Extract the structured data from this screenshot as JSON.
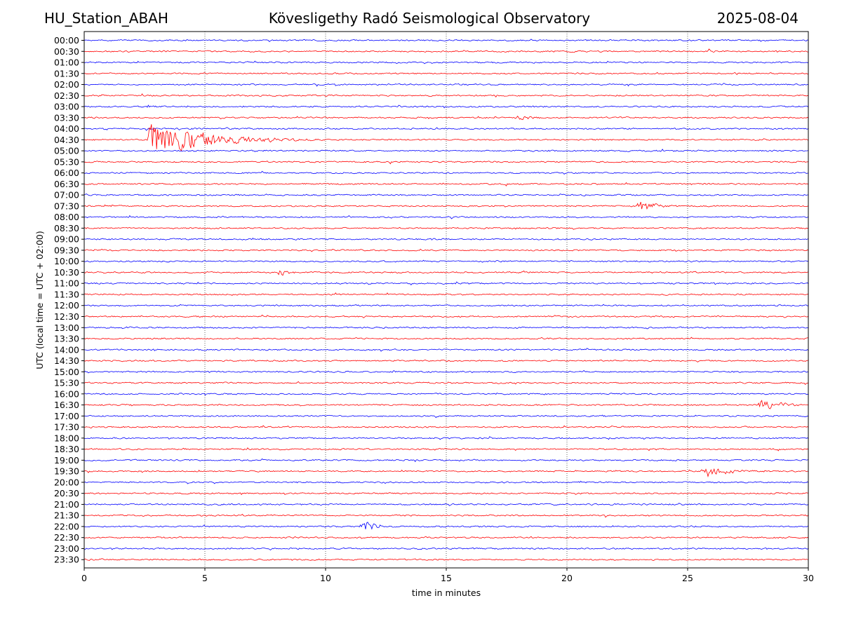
{
  "header": {
    "station": "HU_Station_ABAH",
    "observatory": "Kövesligethy Radó Seismological Observatory",
    "date": "2025-08-04"
  },
  "chart_data": {
    "type": "line",
    "title": "Kövesligethy Radó Seismological Observatory",
    "xlabel": "time in minutes",
    "ylabel": "UTC (local time = UTC + 02:00)",
    "xlim": [
      0,
      30
    ],
    "x_ticks": [
      "0",
      "5",
      "10",
      "15",
      "20",
      "25",
      "30"
    ],
    "grid_x": true,
    "grid_style": "dotted",
    "trace_colors": [
      "#0000ff",
      "#ff0000"
    ],
    "rows": [
      "00:00",
      "00:30",
      "01:00",
      "01:30",
      "02:00",
      "02:30",
      "03:00",
      "03:30",
      "04:00",
      "04:30",
      "05:00",
      "05:30",
      "06:00",
      "06:30",
      "07:00",
      "07:30",
      "08:00",
      "08:30",
      "09:00",
      "09:30",
      "10:00",
      "10:30",
      "11:00",
      "11:30",
      "12:00",
      "12:30",
      "13:00",
      "13:30",
      "14:00",
      "14:30",
      "15:00",
      "15:30",
      "16:00",
      "16:30",
      "17:00",
      "17:30",
      "18:00",
      "18:30",
      "19:00",
      "19:30",
      "20:00",
      "20:30",
      "21:00",
      "21:30",
      "22:00",
      "22:30",
      "23:00",
      "23:30"
    ],
    "events": [
      {
        "row": "00:30",
        "start_min": 25.8,
        "duration_min": 1.0,
        "amplitude": 0.3
      },
      {
        "row": "03:00",
        "start_min": 2.6,
        "duration_min": 0.6,
        "amplitude": 0.35
      },
      {
        "row": "03:30",
        "start_min": 17.9,
        "duration_min": 1.3,
        "amplitude": 0.45
      },
      {
        "row": "04:30",
        "start_min": 2.6,
        "duration_min": 7.0,
        "amplitude": 2.0
      },
      {
        "row": "07:30",
        "start_min": 22.9,
        "duration_min": 1.8,
        "amplitude": 0.8
      },
      {
        "row": "10:30",
        "start_min": 8.0,
        "duration_min": 1.2,
        "amplitude": 0.45
      },
      {
        "row": "16:30",
        "start_min": 27.9,
        "duration_min": 2.1,
        "amplitude": 0.9
      },
      {
        "row": "19:30",
        "start_min": 25.6,
        "duration_min": 3.0,
        "amplitude": 0.7
      },
      {
        "row": "22:00",
        "start_min": 11.4,
        "duration_min": 1.6,
        "amplitude": 0.9
      }
    ]
  }
}
